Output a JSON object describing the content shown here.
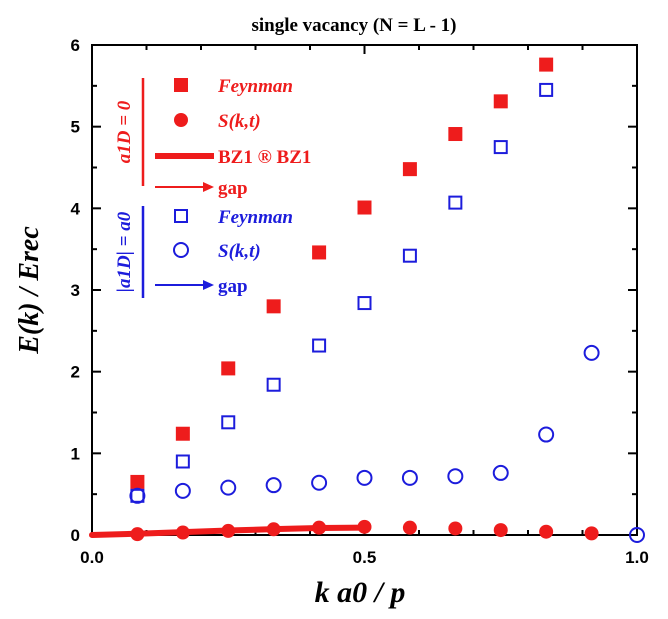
{
  "chart_data": {
    "type": "scatter",
    "title": "single vacancy (N = L - 1)",
    "xlabel": "k a0 / p",
    "ylabel": "E(k) / Erec",
    "xlim": [
      0.0,
      1.0
    ],
    "ylim": [
      0,
      6
    ],
    "x_ticks": [
      "0.0",
      "0.5",
      "1.0"
    ],
    "y_ticks": [
      "0",
      "1",
      "2",
      "3",
      "4",
      "5",
      "6"
    ],
    "grid": false,
    "legend_placement": "top-left",
    "legend": {
      "group_red_label": "a1D = 0",
      "group_blue_label": "|a1D| = a0",
      "entries": [
        {
          "label": "Feynman",
          "marker": "filled-square",
          "color": "#ee1c1c",
          "italic": true
        },
        {
          "label": "S(k,t)",
          "marker": "filled-circle",
          "color": "#ee1c1c",
          "italic": true
        },
        {
          "label": "BZ1 ® BZ1",
          "marker": "thick-line",
          "color": "#ee1c1c",
          "italic": false
        },
        {
          "label": "gap",
          "marker": "arrow",
          "color": "#ee1c1c",
          "italic": false
        },
        {
          "label": "Feynman",
          "marker": "open-square",
          "color": "#1c1cdc",
          "italic": true
        },
        {
          "label": "S(k,t)",
          "marker": "open-circle",
          "color": "#1c1cdc",
          "italic": true
        },
        {
          "label": "gap",
          "marker": "arrow",
          "color": "#1c1cdc",
          "italic": false
        }
      ]
    },
    "series": [
      {
        "name": "Feynman (a1D = 0)",
        "marker": "filled-square",
        "color": "#ee1c1c",
        "x": [
          0.0833,
          0.1667,
          0.25,
          0.3333,
          0.4167,
          0.5,
          0.5833,
          0.6667,
          0.75,
          0.8333
        ],
        "y": [
          0.65,
          1.24,
          2.04,
          2.8,
          3.46,
          4.01,
          4.48,
          4.91,
          5.31,
          5.76
        ]
      },
      {
        "name": "Feynman (|a1D| = a0)",
        "marker": "open-square",
        "color": "#1c1cdc",
        "x": [
          0.0833,
          0.1667,
          0.25,
          0.3333,
          0.4167,
          0.5,
          0.5833,
          0.6667,
          0.75,
          0.8333
        ],
        "y": [
          0.48,
          0.9,
          1.38,
          1.84,
          2.32,
          2.84,
          3.42,
          4.07,
          4.75,
          5.45
        ]
      },
      {
        "name": "S(k,t) (a1D = 0)",
        "marker": "filled-circle",
        "color": "#ee1c1c",
        "x": [
          0.0833,
          0.1667,
          0.25,
          0.3333,
          0.4167,
          0.5,
          0.5833,
          0.6667,
          0.75,
          0.8333,
          0.9167
        ],
        "y": [
          0.01,
          0.03,
          0.05,
          0.07,
          0.09,
          0.1,
          0.09,
          0.08,
          0.06,
          0.04,
          0.02
        ]
      },
      {
        "name": "S(k,t) (|a1D| = a0)",
        "marker": "open-circle",
        "color": "#1c1cdc",
        "x": [
          0.0833,
          0.1667,
          0.25,
          0.3333,
          0.4167,
          0.5,
          0.5833,
          0.6667,
          0.75,
          0.8333,
          0.9167,
          1.0
        ],
        "y": [
          0.48,
          0.54,
          0.58,
          0.61,
          0.64,
          0.7,
          0.7,
          0.72,
          0.76,
          1.23,
          2.23,
          0.0
        ]
      },
      {
        "name": "BZ1 ® BZ1 (a1D = 0)",
        "marker": "thick-line",
        "color": "#ee1c1c",
        "x": [
          0.0,
          0.0833,
          0.1667,
          0.25,
          0.3333,
          0.4167,
          0.5
        ],
        "y": [
          0.0,
          0.015,
          0.035,
          0.055,
          0.072,
          0.085,
          0.09
        ]
      }
    ]
  }
}
